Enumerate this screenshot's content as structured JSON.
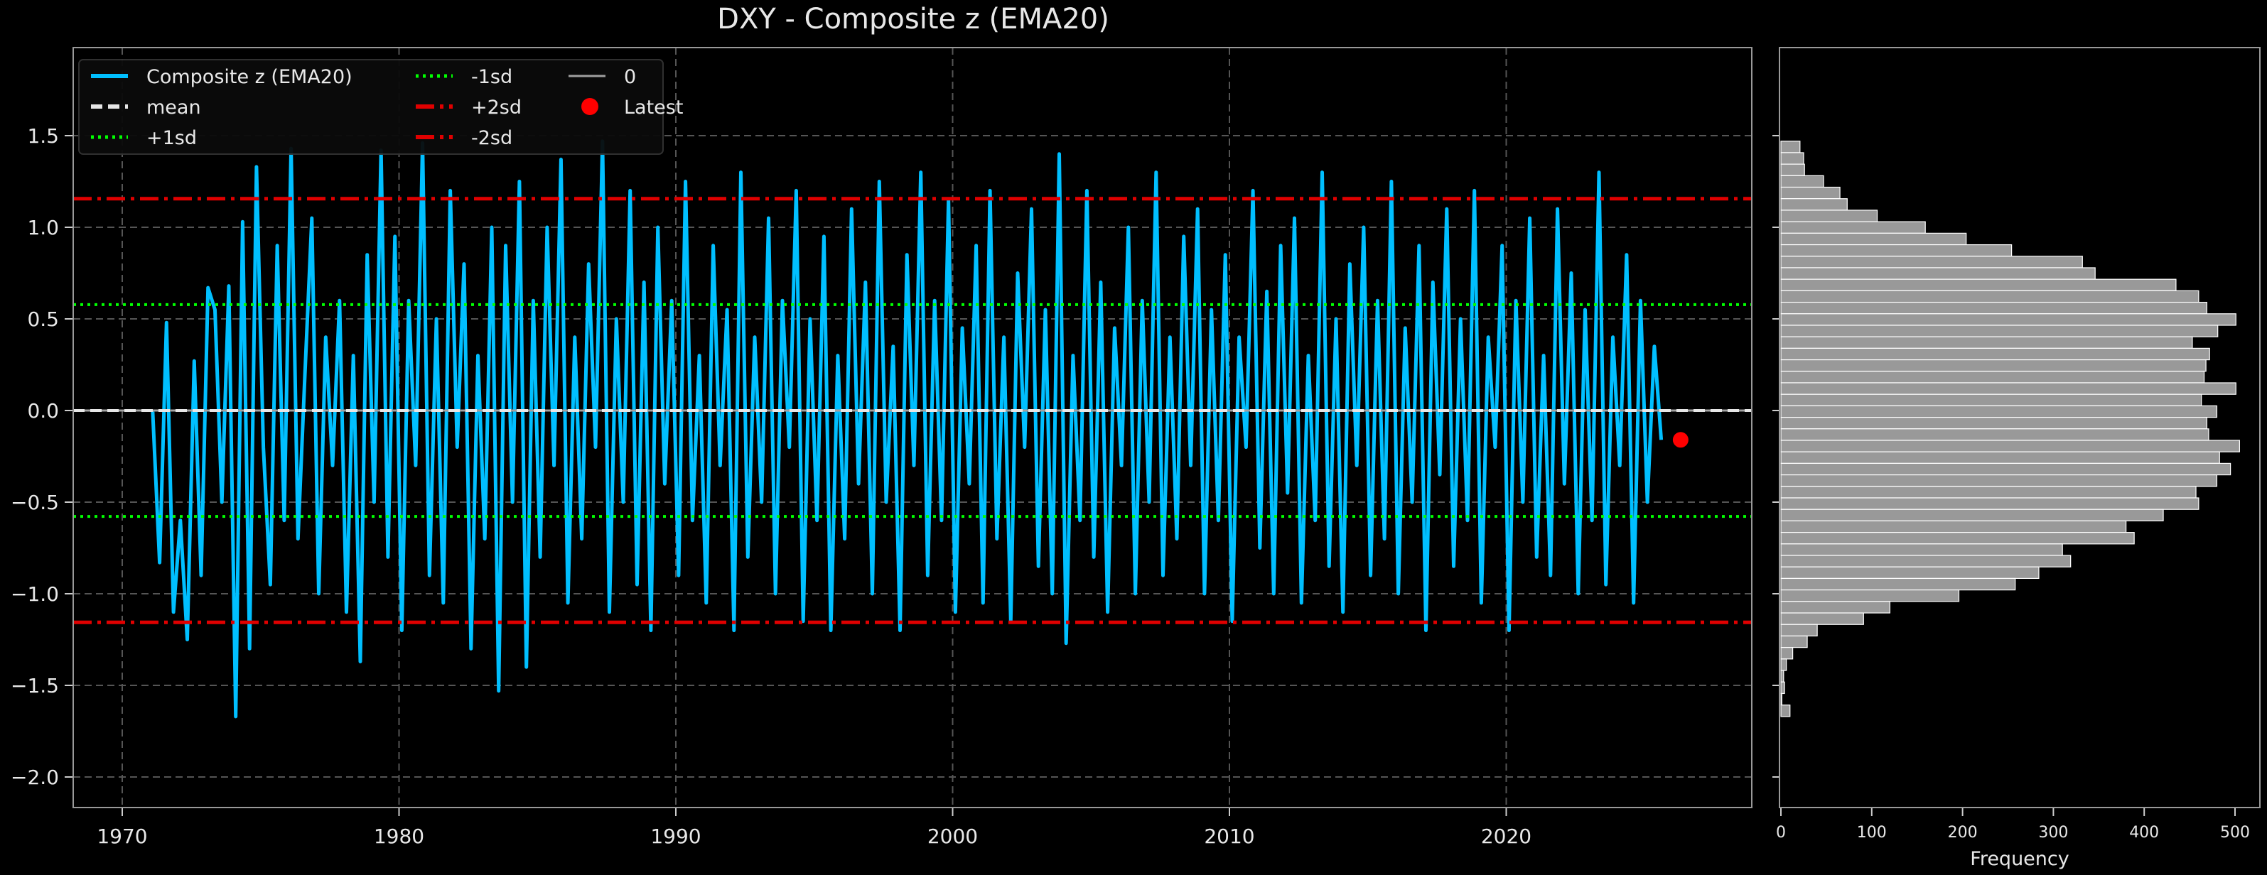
{
  "chart_data": [
    {
      "type": "line",
      "title": "DXY - Composite z (EMA20)",
      "xlabel": "",
      "ylabel": "",
      "xlim": [
        1968.2,
        2028.9
      ],
      "ylim": [
        -2.15,
        1.98
      ],
      "xticks": [
        1970,
        1980,
        1990,
        2000,
        2010,
        2020
      ],
      "yticks": [
        -2.0,
        -1.5,
        -1.0,
        -0.5,
        0.0,
        0.5,
        1.0,
        1.5
      ],
      "grid": true,
      "legend_placement": "upper-left",
      "colors": {
        "series": "#00bfff",
        "mean": "#e6e6e6",
        "sd1": "#00ff00",
        "sd2": "#e00000",
        "zero": "#a0a0a0",
        "latest": "#ff0000",
        "background": "#000000"
      },
      "legend": [
        {
          "label": "Composite z (EMA20)",
          "style": "solid-blue"
        },
        {
          "label": "mean",
          "style": "dashed-white"
        },
        {
          "label": "+1sd",
          "style": "dotted-green"
        },
        {
          "label": "-1sd",
          "style": "dotted-green"
        },
        {
          "label": "+2sd",
          "style": "dashdot-red"
        },
        {
          "label": "-2sd",
          "style": "dashdot-red"
        },
        {
          "label": "0",
          "style": "solid-gray"
        },
        {
          "label": "Latest",
          "style": "red-dot"
        }
      ],
      "reference_lines": {
        "mean": 0.0,
        "plus_1sd": 0.578,
        "minus_1sd": -0.578,
        "plus_2sd": 1.156,
        "minus_2sd": -1.156,
        "zero": 0.0
      },
      "latest": {
        "x": 2026.3,
        "y": -0.16
      },
      "series": [
        {
          "name": "Composite z (EMA20)",
          "x_start": 1971.1,
          "x_step": 0.25,
          "values": [
            0.0,
            -0.83,
            0.48,
            -1.1,
            -0.6,
            -1.25,
            0.27,
            -0.9,
            0.67,
            0.55,
            -0.5,
            0.68,
            -1.67,
            1.03,
            -1.3,
            1.33,
            -0.2,
            -0.95,
            0.9,
            -0.6,
            1.43,
            -0.7,
            0.2,
            1.05,
            -1.0,
            0.4,
            -0.3,
            0.6,
            -1.1,
            0.3,
            -1.37,
            0.85,
            -0.5,
            1.42,
            -0.8,
            0.95,
            -1.2,
            0.6,
            -0.3,
            1.46,
            -0.9,
            0.5,
            -1.05,
            1.2,
            -0.2,
            0.8,
            -1.3,
            0.3,
            -0.7,
            1.0,
            -1.53,
            0.9,
            -0.5,
            1.25,
            -1.4,
            0.6,
            -0.8,
            1.0,
            -0.3,
            1.37,
            -1.05,
            0.4,
            -0.7,
            0.8,
            -0.2,
            1.47,
            -1.1,
            0.5,
            -0.5,
            1.2,
            -0.95,
            0.7,
            -1.2,
            1.0,
            -0.4,
            0.6,
            -0.9,
            1.25,
            -0.6,
            0.3,
            -1.05,
            0.9,
            -0.3,
            0.55,
            -1.2,
            1.3,
            -0.8,
            0.4,
            -0.5,
            1.05,
            -1.0,
            0.6,
            -0.2,
            1.2,
            -1.15,
            0.5,
            -0.6,
            0.95,
            -1.2,
            0.3,
            -0.7,
            1.1,
            -0.4,
            0.7,
            -1.0,
            1.25,
            -0.5,
            0.35,
            -1.2,
            0.85,
            -0.3,
            1.3,
            -0.9,
            0.6,
            -0.6,
            1.15,
            -1.1,
            0.45,
            -0.4,
            0.9,
            -1.05,
            1.2,
            -0.7,
            0.4,
            -1.15,
            0.75,
            -0.2,
            1.1,
            -0.85,
            0.55,
            -1.0,
            1.4,
            -1.27,
            0.3,
            -0.6,
            1.2,
            -0.8,
            0.7,
            -1.1,
            0.45,
            -0.3,
            1.0,
            -1.0,
            0.6,
            -0.5,
            1.3,
            -0.9,
            0.4,
            -0.7,
            0.95,
            -0.3,
            1.1,
            -1.0,
            0.55,
            -0.6,
            0.85,
            -1.15,
            0.4,
            -0.2,
            1.2,
            -0.75,
            0.65,
            -1.0,
            0.9,
            -0.45,
            1.05,
            -1.05,
            0.3,
            -0.6,
            1.3,
            -0.85,
            0.5,
            -1.1,
            0.8,
            -0.3,
            1.0,
            -0.9,
            0.6,
            -0.7,
            1.25,
            -1.0,
            0.45,
            -0.5,
            0.9,
            -1.2,
            0.7,
            -0.35,
            1.1,
            -0.85,
            0.5,
            -0.6,
            1.2,
            -1.05,
            0.4,
            -0.2,
            0.9,
            -1.2,
            0.6,
            -0.5,
            1.05,
            -0.8,
            0.3,
            -0.9,
            1.1,
            -0.4,
            0.75,
            -1.0,
            0.55,
            -0.6,
            1.3,
            -0.95,
            0.4,
            -0.3,
            0.85,
            -1.05,
            0.6,
            -0.5,
            0.35,
            -0.16
          ]
        }
      ]
    },
    {
      "type": "bar",
      "orientation": "horizontal",
      "xlabel": "Frequency",
      "ylabel": "",
      "xlim": [
        0,
        528
      ],
      "xticks": [
        0,
        100,
        200,
        300,
        400,
        500
      ],
      "bin_range": [
        -1.67,
        1.47
      ],
      "bins": 50,
      "shared_y_axis": true,
      "colors": {
        "bar": "#999999",
        "edge": "#ffffff"
      },
      "counts_top_to_bottom": [
        21,
        25,
        26,
        47,
        65,
        73,
        106,
        159,
        204,
        254,
        332,
        346,
        435,
        460,
        469,
        501,
        481,
        453,
        472,
        468,
        466,
        501,
        463,
        480,
        469,
        471,
        505,
        483,
        495,
        480,
        457,
        460,
        421,
        380,
        389,
        310,
        319,
        284,
        258,
        196,
        120,
        91,
        40,
        29,
        13,
        6,
        3,
        4,
        1,
        10
      ]
    }
  ]
}
